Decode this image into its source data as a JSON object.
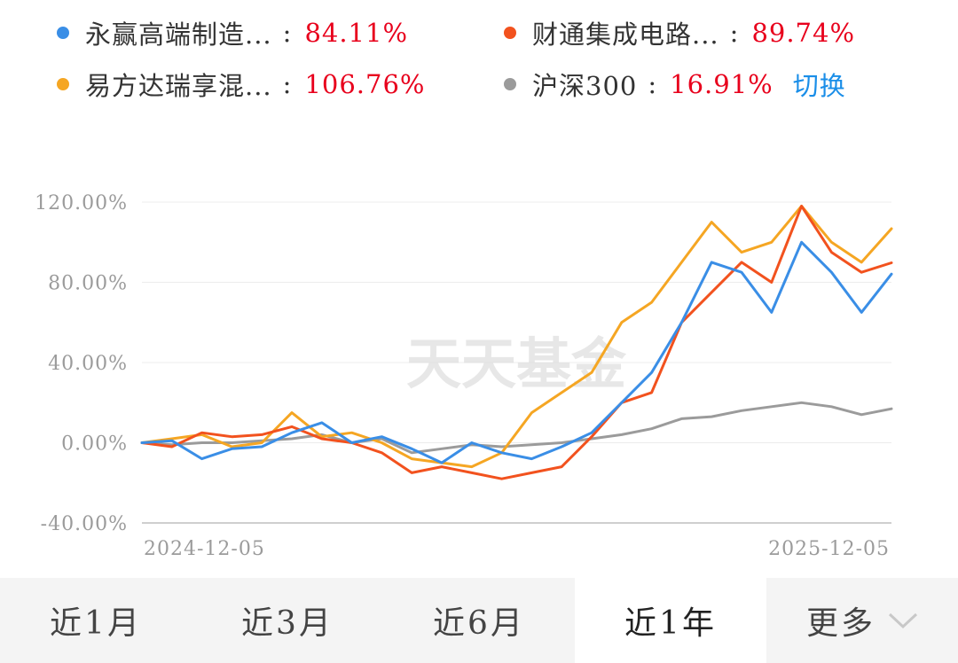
{
  "legend": [
    {
      "name": "永赢高端制造...",
      "value": "84.11%",
      "color": "#3a8ee6"
    },
    {
      "name": "财通集成电路...",
      "value": "89.74%",
      "color": "#f2521e"
    },
    {
      "name": "易方达瑞享混...",
      "value": "106.76%",
      "color": "#f5a623"
    },
    {
      "name": "沪深300",
      "value": "16.91%",
      "color": "#9b9b9b"
    }
  ],
  "switch_label": "切换",
  "watermark": "天天基金",
  "tabs": [
    {
      "label": "近1月",
      "active": false
    },
    {
      "label": "近3月",
      "active": false
    },
    {
      "label": "近6月",
      "active": false
    },
    {
      "label": "近1年",
      "active": true
    },
    {
      "label": "更多",
      "active": false,
      "icon": "chevron-down-icon"
    }
  ],
  "chart_data": {
    "type": "line",
    "y_tick_labels": [
      "120.00%",
      "80.00%",
      "40.00%",
      "0.00%",
      "-40.00%"
    ],
    "y_ticks": [
      120,
      80,
      40,
      0,
      -40
    ],
    "ylim": [
      -40,
      120
    ],
    "x_labels": [
      "2024-12-05",
      "2025-12-05"
    ],
    "grid": true,
    "x": [
      0,
      0.04,
      0.08,
      0.12,
      0.16,
      0.2,
      0.24,
      0.28,
      0.32,
      0.36,
      0.4,
      0.44,
      0.48,
      0.52,
      0.56,
      0.6,
      0.64,
      0.68,
      0.72,
      0.76,
      0.8,
      0.84,
      0.88,
      0.92,
      0.96,
      1.0
    ],
    "series": [
      {
        "name": "永赢高端制造...",
        "color": "#3a8ee6",
        "values": [
          0,
          1,
          -8,
          -3,
          -2,
          5,
          10,
          0,
          3,
          -3,
          -10,
          0,
          -5,
          -8,
          -2,
          5,
          20,
          35,
          60,
          90,
          85,
          65,
          100,
          85,
          65,
          84.11
        ]
      },
      {
        "name": "财通集成电路...",
        "color": "#f2521e",
        "values": [
          0,
          -2,
          5,
          3,
          4,
          8,
          2,
          0,
          -5,
          -15,
          -12,
          -15,
          -18,
          -15,
          -12,
          3,
          20,
          25,
          60,
          75,
          90,
          80,
          118,
          95,
          85,
          89.74
        ]
      },
      {
        "name": "易方达瑞享混...",
        "color": "#f5a623",
        "values": [
          0,
          2,
          4,
          -2,
          0,
          15,
          3,
          5,
          0,
          -8,
          -10,
          -12,
          -5,
          15,
          25,
          35,
          60,
          70,
          90,
          110,
          95,
          100,
          118,
          100,
          90,
          106.76
        ]
      },
      {
        "name": "沪深300",
        "color": "#9b9b9b",
        "values": [
          0,
          -1,
          0,
          0,
          1,
          2,
          4,
          0,
          2,
          -5,
          -3,
          -1,
          -2,
          -1,
          0,
          2,
          4,
          7,
          12,
          13,
          16,
          18,
          20,
          18,
          14,
          16.91
        ]
      }
    ]
  }
}
